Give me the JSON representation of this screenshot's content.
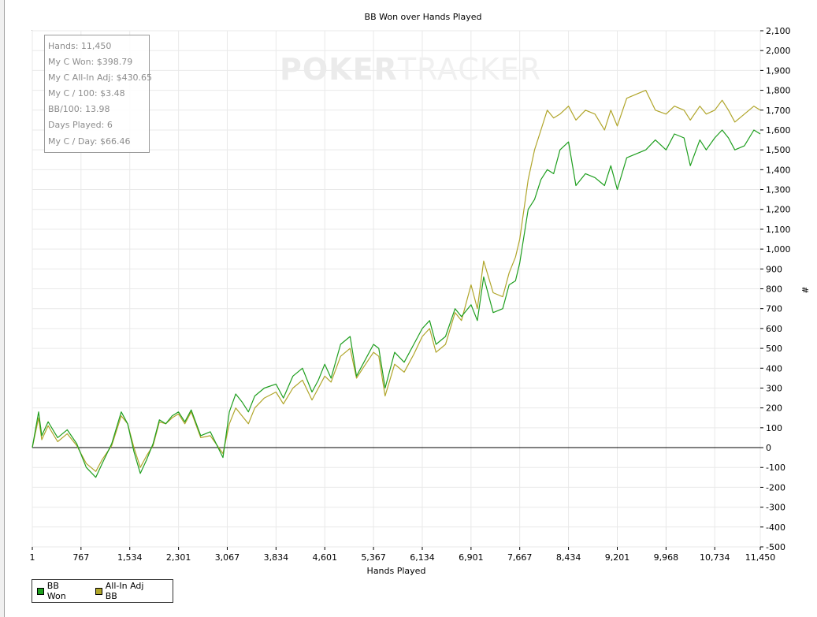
{
  "watermark": {
    "bold": "POKER",
    "light": "TRACKER"
  },
  "stats": [
    "Hands: 11,450",
    "My C Won: $398.79",
    "My C All-In Adj: $430.65",
    "My C / 100: $3.48",
    "BB/100: 13.98",
    "Days Played: 6",
    "My C / Day: $66.46"
  ],
  "colors": {
    "bb_won": "#1e9e1e",
    "allin_adj": "#b0a52a",
    "grid": "#e9e9e9",
    "zero_line": "#000000"
  },
  "chart_data": {
    "type": "line",
    "title": "BB Won over Hands Played",
    "xlabel": "Hands Played",
    "ylabel": "#",
    "xlim": [
      1,
      11450
    ],
    "ylim": [
      -500,
      2100
    ],
    "x_ticks": [
      1,
      767,
      1534,
      2301,
      3067,
      3834,
      4601,
      5367,
      6134,
      6901,
      7667,
      8434,
      9201,
      9968,
      10734,
      11450
    ],
    "x_tick_labels": [
      "1",
      "767",
      "1,534",
      "2,301",
      "3,067",
      "3,834",
      "4,601",
      "5,367",
      "6,134",
      "6,901",
      "7,667",
      "8,434",
      "9,201",
      "9,968",
      "10,734",
      "11,450"
    ],
    "y_ticks": [
      -500,
      -400,
      -300,
      -200,
      -100,
      0,
      100,
      200,
      300,
      400,
      500,
      600,
      700,
      800,
      900,
      1000,
      1100,
      1200,
      1300,
      1400,
      1500,
      1600,
      1700,
      1800,
      1900,
      2000,
      2100
    ],
    "y_tick_labels": [
      "-500",
      "-400",
      "-300",
      "-200",
      "-100",
      "0",
      "100",
      "200",
      "300",
      "400",
      "500",
      "600",
      "700",
      "800",
      "900",
      "1,000",
      "1,100",
      "1,200",
      "1,300",
      "1,400",
      "1,500",
      "1,600",
      "1,700",
      "1,800",
      "1,900",
      "2,000",
      "2,100"
    ],
    "grid": true,
    "legend_position": "bottom-left",
    "series": [
      {
        "name": "BB Won",
        "x": [
          1,
          100,
          150,
          250,
          400,
          550,
          700,
          850,
          1000,
          1100,
          1250,
          1400,
          1500,
          1600,
          1700,
          1800,
          1900,
          2000,
          2100,
          2200,
          2300,
          2400,
          2500,
          2650,
          2800,
          3000,
          3100,
          3200,
          3300,
          3400,
          3500,
          3650,
          3834,
          3950,
          4100,
          4250,
          4400,
          4500,
          4601,
          4700,
          4850,
          5000,
          5100,
          5200,
          5367,
          5450,
          5550,
          5700,
          5850,
          6000,
          6134,
          6250,
          6350,
          6500,
          6650,
          6750,
          6901,
          7000,
          7100,
          7250,
          7400,
          7500,
          7600,
          7667,
          7800,
          7900,
          8000,
          8100,
          8200,
          8300,
          8434,
          8550,
          8700,
          8850,
          9000,
          9100,
          9201,
          9350,
          9500,
          9650,
          9800,
          9968,
          10100,
          10250,
          10350,
          10500,
          10600,
          10734,
          10850,
          10950,
          11050,
          11200,
          11350,
          11450
        ],
        "y": [
          0,
          180,
          60,
          130,
          50,
          90,
          20,
          -100,
          -150,
          -80,
          20,
          180,
          120,
          -20,
          -130,
          -60,
          20,
          140,
          120,
          160,
          180,
          130,
          190,
          60,
          80,
          -50,
          180,
          270,
          230,
          180,
          260,
          300,
          320,
          250,
          360,
          400,
          280,
          340,
          420,
          350,
          520,
          560,
          360,
          420,
          520,
          500,
          300,
          480,
          430,
          520,
          600,
          640,
          520,
          560,
          700,
          660,
          720,
          640,
          860,
          680,
          700,
          820,
          840,
          930,
          1200,
          1250,
          1350,
          1400,
          1380,
          1500,
          1540,
          1320,
          1380,
          1360,
          1320,
          1420,
          1300,
          1460,
          1480,
          1500,
          1550,
          1500,
          1580,
          1560,
          1420,
          1550,
          1500,
          1560,
          1600,
          1560,
          1500,
          1520,
          1600,
          1580
        ],
        "color": "#1e9e1e"
      },
      {
        "name": "All-In Adj BB",
        "x": [
          1,
          100,
          150,
          250,
          400,
          550,
          700,
          850,
          1000,
          1100,
          1250,
          1400,
          1500,
          1600,
          1700,
          1800,
          1900,
          2000,
          2100,
          2200,
          2300,
          2400,
          2500,
          2650,
          2800,
          3000,
          3100,
          3200,
          3300,
          3400,
          3500,
          3650,
          3834,
          3950,
          4100,
          4250,
          4400,
          4500,
          4601,
          4700,
          4850,
          5000,
          5100,
          5200,
          5367,
          5450,
          5550,
          5700,
          5850,
          6000,
          6134,
          6250,
          6350,
          6500,
          6650,
          6750,
          6901,
          7000,
          7100,
          7250,
          7400,
          7500,
          7600,
          7667,
          7800,
          7900,
          8000,
          8100,
          8200,
          8300,
          8434,
          8550,
          8700,
          8850,
          9000,
          9100,
          9201,
          9350,
          9500,
          9650,
          9800,
          9968,
          10100,
          10250,
          10350,
          10500,
          10600,
          10734,
          10850,
          10950,
          11050,
          11200,
          11350,
          11450
        ],
        "y": [
          0,
          150,
          40,
          110,
          30,
          70,
          10,
          -80,
          -120,
          -60,
          10,
          160,
          120,
          0,
          -100,
          -40,
          10,
          130,
          120,
          150,
          170,
          120,
          180,
          50,
          60,
          -30,
          120,
          200,
          160,
          120,
          200,
          250,
          280,
          220,
          300,
          340,
          240,
          300,
          360,
          330,
          460,
          500,
          350,
          400,
          480,
          460,
          260,
          420,
          380,
          470,
          560,
          600,
          480,
          520,
          680,
          640,
          820,
          700,
          940,
          780,
          760,
          880,
          960,
          1050,
          1350,
          1500,
          1600,
          1700,
          1660,
          1680,
          1720,
          1650,
          1700,
          1680,
          1600,
          1700,
          1620,
          1760,
          1780,
          1800,
          1700,
          1680,
          1720,
          1700,
          1650,
          1720,
          1680,
          1700,
          1750,
          1700,
          1640,
          1680,
          1720,
          1700
        ],
        "color": "#b0a52a"
      }
    ]
  }
}
